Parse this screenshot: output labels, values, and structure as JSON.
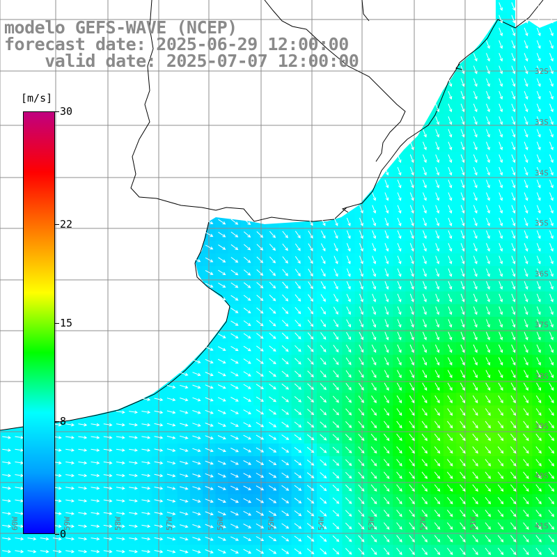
{
  "title": {
    "line1": "modelo GEFS-WAVE (NCEP)",
    "line2": "forecast date: 2025-06-29 12:00:00",
    "line3": "    valid date: 2025-07-07 12:00:00"
  },
  "colorbar": {
    "unit": "[m/s]",
    "ticks": [
      {
        "label": "30",
        "value": 30
      },
      {
        "label": "22",
        "value": 22
      },
      {
        "label": "15",
        "value": 15
      },
      {
        "label": "8",
        "value": 8
      },
      {
        "label": "0",
        "value": 0
      }
    ],
    "min": 0,
    "max": 30,
    "colors": [
      "#0000ff",
      "#00a0ff",
      "#00ffff",
      "#00ff00",
      "#ffff00",
      "#ff8000",
      "#ff0000",
      "#c00080"
    ]
  },
  "map": {
    "lat_labels": [
      "32S",
      "33S",
      "34S",
      "35S",
      "36S",
      "37S",
      "38S",
      "39S",
      "40S",
      "41S"
    ],
    "lon_labels": [
      "60W",
      "59W",
      "58W",
      "57W",
      "56W",
      "55W",
      "54W",
      "53W",
      "52W",
      "51W"
    ],
    "land_color": "#ffffff",
    "grid_color": "#8c8c8c",
    "coast_color": "#000000",
    "arrow_color": "#ffffff"
  }
}
